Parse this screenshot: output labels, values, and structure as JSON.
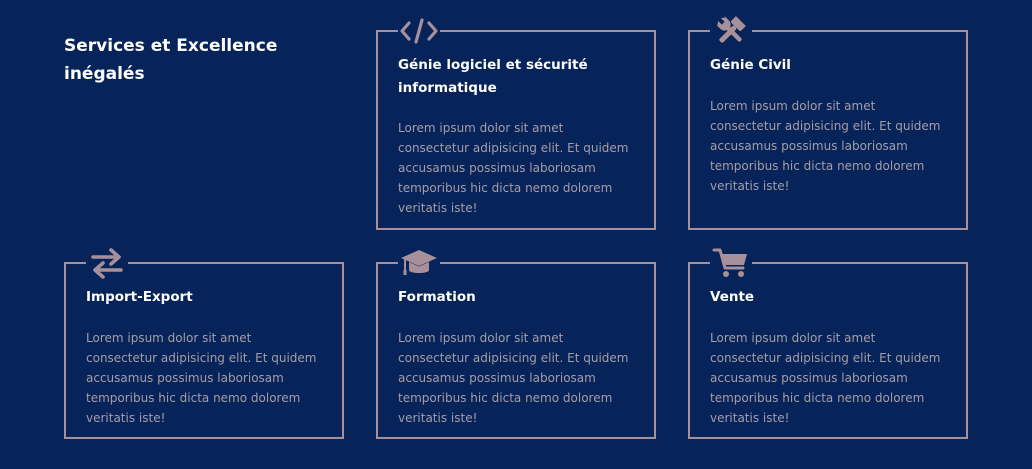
{
  "section": {
    "title": "Services et Excellence inégalés"
  },
  "colors": {
    "background": "#07245a",
    "card_border": "#a8909b",
    "icon": "#a8909b",
    "title_text": "#ffffff",
    "body_text": "#a59da6"
  },
  "cards": [
    {
      "icon": "code-icon",
      "title": "Génie logiciel et sécurité informatique",
      "text": "Lorem ipsum dolor sit amet consectetur adipisicing elit. Et quidem accusamus possimus laboriosam temporibus hic dicta nemo dolorem veritatis iste!"
    },
    {
      "icon": "tools-icon",
      "title": "Génie Civil",
      "text": "Lorem ipsum dolor sit amet consectetur adipisicing elit. Et quidem accusamus possimus laboriosam temporibus hic dicta nemo dolorem veritatis iste!"
    },
    {
      "icon": "exchange-arrows-icon",
      "title": "Import-Export",
      "text": "Lorem ipsum dolor sit amet consectetur adipisicing elit. Et quidem accusamus possimus laboriosam temporibus hic dicta nemo dolorem veritatis iste!"
    },
    {
      "icon": "graduation-cap-icon",
      "title": "Formation",
      "text": "Lorem ipsum dolor sit amet consectetur adipisicing elit. Et quidem accusamus possimus laboriosam temporibus hic dicta nemo dolorem veritatis iste!"
    },
    {
      "icon": "shopping-cart-icon",
      "title": "Vente",
      "text": "Lorem ipsum dolor sit amet consectetur adipisicing elit. Et quidem accusamus possimus laboriosam temporibus hic dicta nemo dolorem veritatis iste!"
    }
  ]
}
